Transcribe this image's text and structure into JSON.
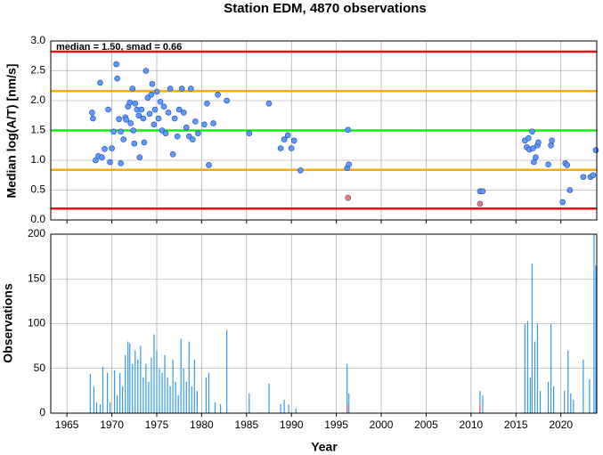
{
  "chart_data": [
    {
      "type": "scatter",
      "title": "Station EDM, 4870 observations",
      "ylabel": "Median log(A/T) [nm/s]",
      "annotation": "median = 1.50, smad = 0.66",
      "xlim": [
        1963.2,
        2024
      ],
      "xticks": [
        1965,
        1970,
        1975,
        1980,
        1985,
        1990,
        1995,
        2000,
        2005,
        2010,
        2015,
        2020
      ],
      "ylim": [
        0,
        3
      ],
      "yticks": [
        {
          "value": 0,
          "label": "0.0"
        },
        {
          "value": 0.5,
          "label": "0.5"
        },
        {
          "value": 1,
          "label": "1.0"
        },
        {
          "value": 1.5,
          "label": "1.5"
        },
        {
          "value": 2,
          "label": "2.0"
        },
        {
          "value": 2.5,
          "label": "2.5"
        },
        {
          "value": 3,
          "label": "3.0"
        }
      ],
      "grid": true,
      "hlines": [
        {
          "value": 2.82,
          "color": "#ee1111"
        },
        {
          "value": 2.16,
          "color": "#ffaa00"
        },
        {
          "value": 1.5,
          "color": "#11ee11"
        },
        {
          "value": 0.84,
          "color": "#ffaa00"
        },
        {
          "value": 0.19,
          "color": "#ee1111"
        }
      ],
      "series": [
        {
          "color": "#5b9bff",
          "x": [
            1967.8,
            1967.9,
            1968.2,
            1968.5,
            1968.7,
            1968.9,
            1969.2,
            1969.6,
            1969.8,
            1970.0,
            1970.2,
            1970.5,
            1970.6,
            1970.8,
            1971.0,
            1971.0,
            1971.3,
            1971.5,
            1971.6,
            1971.8,
            1972.0,
            1972.1,
            1972.3,
            1972.4,
            1972.5,
            1972.6,
            1972.8,
            1973.0,
            1973.1,
            1973.3,
            1973.5,
            1973.6,
            1973.8,
            1974.0,
            1974.2,
            1974.4,
            1974.5,
            1974.7,
            1974.8,
            1975.0,
            1975.2,
            1975.4,
            1975.6,
            1975.8,
            1976.0,
            1976.3,
            1976.5,
            1976.8,
            1977.0,
            1977.3,
            1977.5,
            1977.8,
            1978.0,
            1978.3,
            1978.6,
            1978.8,
            1979.0,
            1979.3,
            1979.6,
            1980.3,
            1980.6,
            1980.8,
            1981.3,
            1981.8,
            1982.8,
            1985.3,
            1987.5,
            1988.8,
            1989.2,
            1989.6,
            1990.0,
            1990.3,
            1991.0,
            1996.2,
            1996.4,
            1996.3,
            2011.0,
            2011.3,
            2016.0,
            2016.2,
            2016.4,
            2016.5,
            2016.8,
            2016.9,
            2017.0,
            2017.2,
            2017.4,
            2017.5,
            2018.6,
            2018.9,
            2019.0,
            2020.2,
            2020.5,
            2020.7,
            2021.0,
            2022.5,
            2023.3,
            2023.6,
            2023.9
          ],
          "values": [
            1.8,
            1.7,
            1.0,
            1.07,
            2.3,
            1.05,
            1.19,
            1.85,
            0.97,
            1.2,
            1.48,
            2.61,
            2.37,
            1.69,
            1.48,
            0.95,
            1.35,
            1.72,
            1.68,
            1.9,
            1.97,
            1.62,
            2.2,
            1.5,
            1.28,
            1.95,
            1.85,
            1.75,
            1.05,
            1.85,
            1.7,
            1.3,
            2.5,
            2.05,
            1.78,
            2.1,
            2.28,
            1.6,
            1.85,
            2.15,
            1.7,
            1.98,
            1.5,
            1.9,
            1.45,
            1.8,
            2.2,
            1.1,
            1.7,
            1.4,
            1.85,
            2.2,
            1.8,
            1.55,
            1.4,
            2.2,
            1.35,
            1.65,
            1.45,
            1.6,
            1.95,
            0.92,
            1.62,
            2.1,
            2.0,
            1.45,
            1.95,
            1.2,
            1.35,
            1.42,
            1.2,
            1.33,
            0.83,
            0.87,
            0.93,
            1.51,
            0.48,
            0.48,
            1.33,
            1.22,
            1.37,
            1.18,
            1.48,
            1.2,
            0.97,
            1.05,
            1.25,
            1.3,
            0.93,
            1.25,
            1.33,
            0.3,
            0.95,
            0.92,
            0.5,
            0.72,
            0.72,
            0.75,
            1.17
          ]
        },
        {
          "color": "#ff7766",
          "x": [
            1996.3,
            2011.0
          ],
          "values": [
            0.37,
            0.27
          ]
        }
      ]
    },
    {
      "type": "bar",
      "ylabel": "Observations",
      "xlabel": "Year",
      "xlim": [
        1963.2,
        2024
      ],
      "xticks": [
        1965,
        1970,
        1975,
        1980,
        1985,
        1990,
        1995,
        2000,
        2005,
        2010,
        2015,
        2020
      ],
      "ylim": [
        0,
        200
      ],
      "yticks": [
        0,
        50,
        100,
        150,
        200
      ],
      "grid": true,
      "series": [
        {
          "color": "#3399ee",
          "x": [
            1967.6,
            1968.0,
            1968.3,
            1968.7,
            1969.0,
            1969.5,
            1969.8,
            1970.3,
            1970.6,
            1970.9,
            1971.2,
            1971.5,
            1971.8,
            1972.0,
            1972.3,
            1972.6,
            1972.9,
            1973.2,
            1973.5,
            1973.8,
            1974.1,
            1974.4,
            1974.7,
            1975.0,
            1975.3,
            1975.6,
            1975.9,
            1976.2,
            1976.5,
            1976.8,
            1977.1,
            1977.4,
            1977.7,
            1978.0,
            1978.3,
            1978.6,
            1978.9,
            1979.2,
            1979.5,
            1980.5,
            1980.8,
            1981.5,
            1982.1,
            1982.8,
            1985.3,
            1987.5,
            1988.8,
            1989.2,
            1989.7,
            1990.5,
            1996.2,
            1996.4,
            2011.0,
            2011.3,
            2016.0,
            2016.3,
            2016.6,
            2016.8,
            2017.1,
            2017.4,
            2017.7,
            2018.6,
            2018.9,
            2019.2,
            2020.4,
            2020.8,
            2021.1,
            2021.4,
            2022.5,
            2023.2,
            2023.7,
            2023.9
          ],
          "values": [
            44,
            30,
            12,
            10,
            52,
            45,
            12,
            48,
            20,
            45,
            30,
            65,
            80,
            78,
            55,
            70,
            60,
            75,
            40,
            55,
            35,
            62,
            88,
            70,
            50,
            45,
            65,
            40,
            30,
            60,
            35,
            20,
            83,
            50,
            35,
            80,
            30,
            60,
            25,
            40,
            45,
            12,
            10,
            93,
            22,
            33,
            10,
            15,
            10,
            5,
            55,
            22,
            25,
            20,
            100,
            103,
            40,
            167,
            80,
            100,
            25,
            35,
            100,
            30,
            25,
            70,
            22,
            15,
            60,
            38,
            200,
            165
          ]
        },
        {
          "color": "#ee5566",
          "x": [
            1996.2,
            2011.0
          ],
          "values": [
            10,
            10
          ]
        }
      ]
    }
  ]
}
